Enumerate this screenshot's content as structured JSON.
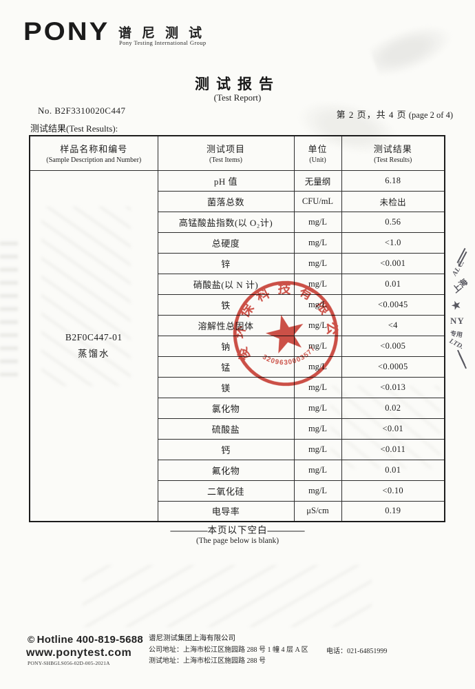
{
  "header": {
    "logo_word": "PONY",
    "logo_cn": "谱尼测试",
    "logo_en": "Pony Testing International Group"
  },
  "title": {
    "cn": "测试报告",
    "en": "(Test Report)"
  },
  "meta": {
    "report_no": "No. B2F3310020C447",
    "page_cn": "第 2 页，共 4 页",
    "page_en": "(page 2 of 4)",
    "results_label": "测试结果(Test Results):"
  },
  "table": {
    "headers": [
      {
        "cn": "样品名称和编号",
        "en": "(Sample Description and Number)"
      },
      {
        "cn": "测试项目",
        "en": "(Test Items)"
      },
      {
        "cn": "单位",
        "en": "(Unit)"
      },
      {
        "cn": "测试结果",
        "en": "(Test Results)"
      }
    ],
    "sample": {
      "id": "B2F0C447-01",
      "name": "蒸馏水"
    },
    "rows": [
      {
        "item": "pH 值",
        "unit": "无量纲",
        "result": "6.18"
      },
      {
        "item": "菌落总数",
        "unit": "CFU/mL",
        "result": "未检出"
      },
      {
        "item": "高锰酸盐指数(以 O₂计)",
        "unit": "mg/L",
        "result": "0.56"
      },
      {
        "item": "总硬度",
        "unit": "mg/L",
        "result": "<1.0"
      },
      {
        "item": "锌",
        "unit": "mg/L",
        "result": "<0.001"
      },
      {
        "item": "硝酸盐(以 N 计)",
        "unit": "mg/L",
        "result": "0.01"
      },
      {
        "item": "铁",
        "unit": "mg/L",
        "result": "<0.0045"
      },
      {
        "item": "溶解性总固体",
        "unit": "mg/L",
        "result": "<4"
      },
      {
        "item": "钠",
        "unit": "mg/L",
        "result": "<0.005"
      },
      {
        "item": "锰",
        "unit": "mg/L",
        "result": "<0.0005"
      },
      {
        "item": "镁",
        "unit": "mg/L",
        "result": "<0.013"
      },
      {
        "item": "氯化物",
        "unit": "mg/L",
        "result": "0.02"
      },
      {
        "item": "硫酸盐",
        "unit": "mg/L",
        "result": "<0.01"
      },
      {
        "item": "钙",
        "unit": "mg/L",
        "result": "<0.011"
      },
      {
        "item": "氟化物",
        "unit": "mg/L",
        "result": "0.01"
      },
      {
        "item": "二氧化硅",
        "unit": "mg/L",
        "result": "<0.10"
      },
      {
        "item": "电导率",
        "unit": "μS/cm",
        "result": "0.19"
      }
    ]
  },
  "blank_note": {
    "cn": "本页以下空白",
    "en": "(The page below is blank)",
    "dash": "————"
  },
  "stamp": {
    "ring_text": "俊环保科技有限公司",
    "serial": "3209630003577",
    "color": "#c9392f"
  },
  "edge_stamp": {
    "frag1": "AL C.",
    "frag2": "上海",
    "star": "★",
    "frag3": "NY",
    "frag4": "专用",
    "frag5": "LTD."
  },
  "footer": {
    "hotline_icon": "©",
    "hotline": "Hotline 400-819-5688",
    "website": "www.ponytest.com",
    "doc_code": "PONY-SHBGLS056-02D-005-2021A",
    "company": "谱尼测试集团上海有限公司",
    "company_address": "公司地址：上海市松江区施园路 288 号 1 幢 4 层 A 区",
    "test_address": "测试地址：上海市松江区施园路 288 号",
    "phone": "电话：021-64851999"
  }
}
